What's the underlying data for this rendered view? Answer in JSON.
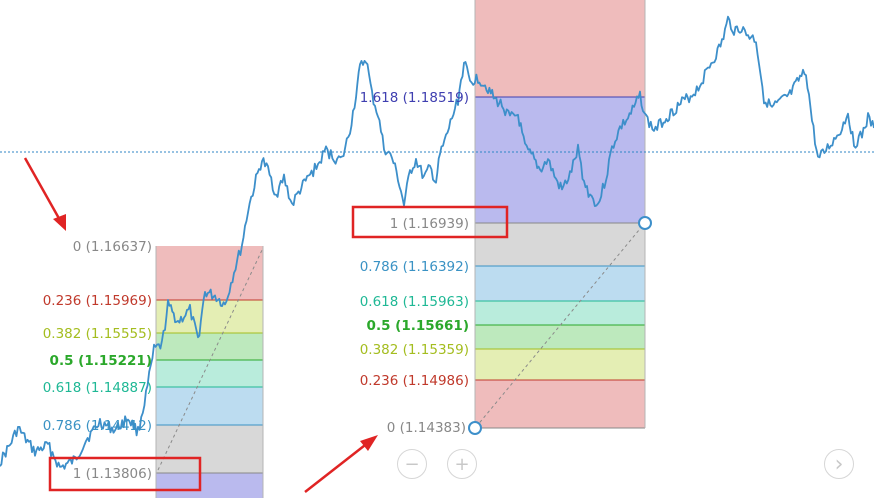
{
  "chart": {
    "line_color": "#3d8fca",
    "dotted_line_color": "#2f86c6"
  },
  "fib_left": {
    "levels": [
      {
        "label": "0 (1.16637)",
        "color": "#888888"
      },
      {
        "label": "0.236 (1.15969)",
        "color": "#c0392b"
      },
      {
        "label": "0.382 (1.15555)",
        "color": "#a4bd1f"
      },
      {
        "label": "0.5 (1.15221)",
        "color": "#2ba82b"
      },
      {
        "label": "0.618 (1.14887)",
        "color": "#1fb895"
      },
      {
        "label": "0.786 (1.14412)",
        "color": "#3a92c4"
      },
      {
        "label": "1 (1.13806)",
        "color": "#888888"
      }
    ]
  },
  "fib_right": {
    "levels": [
      {
        "label": "1.618 (1.18519)",
        "color": "#3f3fb0"
      },
      {
        "label": "1 (1.16939)",
        "color": "#888888"
      },
      {
        "label": "0.786 (1.16392)",
        "color": "#3a92c4"
      },
      {
        "label": "0.618 (1.15963)",
        "color": "#1fb895"
      },
      {
        "label": "0.5 (1.15661)",
        "color": "#2ba82b"
      },
      {
        "label": "0.382 (1.15359)",
        "color": "#a4bd1f"
      },
      {
        "label": "0.236 (1.14986)",
        "color": "#c0392b"
      },
      {
        "label": "0 (1.14383)",
        "color": "#888888"
      }
    ]
  },
  "controls": {
    "zoom_out_icon": "−",
    "zoom_in_icon": "+",
    "next_icon": "›"
  },
  "annotations": {
    "arrow_color": "#e02424",
    "box_color": "#e02424"
  }
}
